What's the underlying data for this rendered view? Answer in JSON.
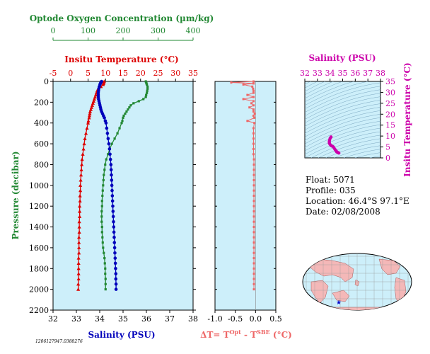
{
  "colors": {
    "bg": "#cdeffa",
    "temperature": "#dd0000",
    "salinity": "#0000bb",
    "oxygen": "#228833",
    "delta": "#ee6666",
    "ts": "#cc00aa"
  },
  "chart_data": [
    {
      "type": "line",
      "panel": "profile",
      "ylabel": "Pressure (decibar)",
      "ylim": [
        2200,
        0
      ],
      "yticks": [
        0,
        200,
        400,
        600,
        800,
        1000,
        1200,
        1400,
        1600,
        1800,
        2000,
        2200
      ],
      "axes": {
        "oxygen": {
          "label": "Optode Oxygen Concentration (µm/kg)",
          "range": [
            0,
            400
          ],
          "ticks": [
            0,
            100,
            200,
            300,
            400
          ]
        },
        "temperature": {
          "label": "Insitu Temperature (°C)",
          "range": [
            -5,
            35
          ],
          "ticks": [
            -5,
            0,
            5,
            10,
            15,
            20,
            25,
            30,
            35
          ]
        },
        "salinity": {
          "label": "Salinity (PSU)",
          "range": [
            32,
            38
          ],
          "ticks": [
            32,
            33,
            34,
            35,
            36,
            37,
            38
          ]
        }
      },
      "series": [
        {
          "axis": "temperature",
          "p": [
            0,
            10,
            20,
            30,
            50,
            70,
            90,
            110,
            130,
            150,
            170,
            190,
            210,
            230,
            250,
            270,
            290,
            310,
            330,
            350,
            380,
            400,
            450,
            500,
            550,
            600,
            650,
            700,
            750,
            800,
            850,
            900,
            950,
            1000,
            1050,
            1100,
            1150,
            1200,
            1250,
            1300,
            1350,
            1400,
            1450,
            1500,
            1550,
            1600,
            1650,
            1700,
            1750,
            1800,
            1850,
            1900,
            1950,
            2000
          ],
          "v": [
            9.6,
            9.5,
            9.4,
            9.3,
            8.7,
            7.9,
            7.6,
            7.4,
            7.2,
            7.0,
            6.8,
            6.6,
            6.4,
            6.2,
            6.0,
            5.8,
            5.6,
            5.5,
            5.4,
            5.3,
            5.1,
            5.0,
            4.7,
            4.4,
            4.1,
            3.9,
            3.7,
            3.5,
            3.3,
            3.2,
            3.1,
            3.0,
            2.9,
            2.8,
            2.8,
            2.7,
            2.7,
            2.6,
            2.6,
            2.6,
            2.5,
            2.5,
            2.5,
            2.4,
            2.4,
            2.4,
            2.4,
            2.3,
            2.3,
            2.3,
            2.3,
            2.3,
            2.2,
            2.2
          ]
        },
        {
          "axis": "salinity",
          "p": [
            0,
            10,
            20,
            30,
            50,
            70,
            90,
            110,
            130,
            150,
            170,
            190,
            210,
            230,
            250,
            270,
            290,
            310,
            330,
            350,
            380,
            400,
            450,
            500,
            550,
            600,
            650,
            700,
            750,
            800,
            850,
            900,
            950,
            1000,
            1050,
            1100,
            1150,
            1200,
            1250,
            1300,
            1350,
            1400,
            1450,
            1500,
            1550,
            1600,
            1650,
            1700,
            1750,
            1800,
            1850,
            1900,
            1950,
            2000
          ],
          "v": [
            34.08,
            34.05,
            34.03,
            34.01,
            33.98,
            33.96,
            33.95,
            33.94,
            33.94,
            33.94,
            33.95,
            33.97,
            33.99,
            34.01,
            34.03,
            34.05,
            34.08,
            34.12,
            34.16,
            34.2,
            34.24,
            34.27,
            34.3,
            34.33,
            34.36,
            34.39,
            34.42,
            34.44,
            34.46,
            34.48,
            34.49,
            34.5,
            34.51,
            34.52,
            34.53,
            34.54,
            34.55,
            34.56,
            34.57,
            34.58,
            34.59,
            34.6,
            34.61,
            34.62,
            34.63,
            34.64,
            34.65,
            34.66,
            34.67,
            34.68,
            34.69,
            34.69,
            34.7,
            34.7
          ]
        },
        {
          "axis": "oxygen",
          "p": [
            0,
            10,
            20,
            30,
            50,
            70,
            90,
            110,
            130,
            150,
            170,
            190,
            210,
            230,
            250,
            270,
            290,
            310,
            330,
            350,
            380,
            400,
            450,
            500,
            550,
            600,
            650,
            700,
            750,
            800,
            850,
            900,
            950,
            1000,
            1050,
            1100,
            1150,
            1200,
            1250,
            1300,
            1350,
            1400,
            1450,
            1500,
            1550,
            1600,
            1650,
            1700,
            1750,
            1800,
            1850,
            1900,
            1950,
            2000
          ],
          "v": [
            265,
            266,
            267,
            268,
            270,
            270,
            269,
            268,
            266,
            265,
            258,
            245,
            230,
            222,
            218,
            214,
            210,
            206,
            202,
            200,
            198,
            196,
            190,
            184,
            176,
            168,
            162,
            157,
            152,
            149,
            147,
            145,
            144,
            143,
            142,
            141,
            140,
            140,
            139,
            139,
            139,
            140,
            140,
            141,
            142,
            143,
            145,
            147,
            148,
            149,
            149,
            150,
            150,
            150
          ]
        }
      ]
    },
    {
      "type": "line",
      "panel": "delta",
      "xlabel": "ΔT= T^Opt - T^SBE (°C)",
      "xlim": [
        -1.0,
        0.5
      ],
      "xticks": [
        -1.0,
        -0.5,
        0.0,
        0.5
      ],
      "ylim": [
        2200,
        0
      ],
      "p": [
        0,
        10,
        20,
        30,
        50,
        70,
        90,
        110,
        130,
        150,
        170,
        190,
        210,
        230,
        250,
        270,
        290,
        310,
        330,
        350,
        380,
        400,
        450,
        500,
        550,
        600,
        650,
        700,
        750,
        800,
        850,
        900,
        950,
        1000,
        1050,
        1100,
        1150,
        1200,
        1250,
        1300,
        1350,
        1400,
        1450,
        1500,
        1550,
        1600,
        1650,
        1700,
        1750,
        1800,
        1850,
        1900,
        1950,
        2000
      ],
      "v": [
        -0.05,
        -0.6,
        -0.05,
        -0.3,
        -0.08,
        -0.06,
        -0.05,
        -0.05,
        -0.2,
        -0.05,
        -0.3,
        -0.05,
        -0.1,
        -0.05,
        -0.15,
        -0.05,
        -0.05,
        -0.02,
        -0.05,
        -0.03,
        -0.2,
        -0.03,
        -0.05,
        -0.05,
        -0.05,
        -0.05,
        -0.05,
        -0.05,
        -0.04,
        -0.04,
        -0.04,
        -0.04,
        -0.04,
        -0.04,
        -0.04,
        -0.04,
        -0.04,
        -0.04,
        -0.04,
        -0.04,
        -0.04,
        -0.04,
        -0.04,
        -0.04,
        -0.04,
        -0.04,
        -0.04,
        -0.04,
        -0.04,
        -0.04,
        -0.04,
        -0.04,
        -0.04,
        -0.04
      ]
    },
    {
      "type": "scatter",
      "panel": "ts",
      "xlabel": "Salinity (PSU)",
      "ylabel": "Insitu Temperature (°C)",
      "xlim": [
        32,
        38
      ],
      "xticks": [
        32,
        33,
        34,
        35,
        36,
        37,
        38
      ],
      "ylim": [
        0,
        35
      ],
      "yticks": [
        0,
        5,
        10,
        15,
        20,
        25,
        30,
        35
      ],
      "points": [
        [
          34.08,
          9.6
        ],
        [
          34.05,
          9.3
        ],
        [
          34.0,
          8.9
        ],
        [
          33.97,
          8.3
        ],
        [
          33.95,
          7.8
        ],
        [
          33.94,
          7.4
        ],
        [
          33.94,
          7.0
        ],
        [
          33.96,
          6.6
        ],
        [
          34.0,
          6.2
        ],
        [
          34.05,
          5.8
        ],
        [
          34.12,
          5.5
        ],
        [
          34.2,
          5.3
        ],
        [
          34.27,
          5.0
        ],
        [
          34.33,
          4.4
        ],
        [
          34.39,
          3.9
        ],
        [
          34.44,
          3.5
        ],
        [
          34.48,
          3.2
        ],
        [
          34.5,
          3.0
        ],
        [
          34.52,
          2.8
        ],
        [
          34.55,
          2.7
        ],
        [
          34.58,
          2.6
        ],
        [
          34.6,
          2.5
        ],
        [
          34.63,
          2.4
        ],
        [
          34.66,
          2.3
        ],
        [
          34.69,
          2.3
        ],
        [
          34.7,
          2.2
        ]
      ]
    }
  ],
  "info": {
    "float": "Float:  5071",
    "profile": "Profile:  035",
    "location": "Location:  46.4°S  97.1°E",
    "date": "Date:  02/08/2008"
  },
  "map": {
    "marker": "★",
    "marker_lon": 97.1,
    "marker_lat": -46.4
  },
  "footer_id": "1206127947.0388276"
}
